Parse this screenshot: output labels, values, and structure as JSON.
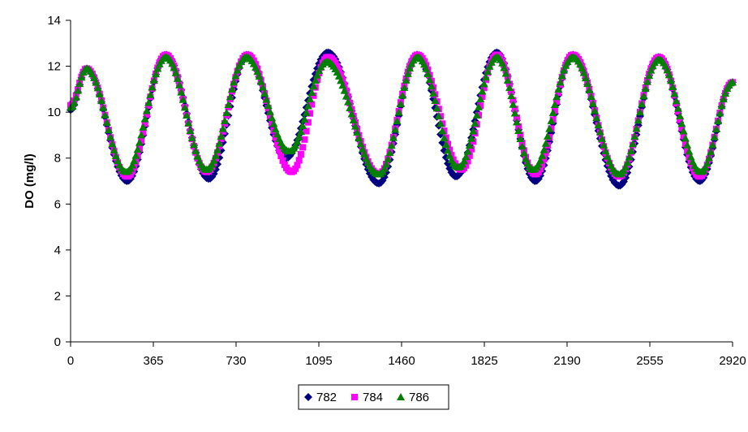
{
  "chart_data": {
    "type": "scatter",
    "title": "",
    "xlabel": "",
    "ylabel": "DO (mg/l)",
    "xlim": [
      0,
      2920
    ],
    "ylim": [
      0,
      14
    ],
    "x_ticks": [
      0,
      365,
      730,
      1095,
      1460,
      1825,
      2190,
      2555,
      2920
    ],
    "y_ticks": [
      0,
      2,
      4,
      6,
      8,
      10,
      12,
      14
    ],
    "grid": false,
    "legend_position": "bottom",
    "x_step": 8,
    "series": [
      {
        "name": "782",
        "color": "#000080",
        "marker": "diamond",
        "x": [
          0,
          70,
          250,
          420,
          610,
          780,
          950,
          1135,
          1360,
          1530,
          1700,
          1880,
          2050,
          2215,
          2420,
          2595,
          2775,
          2920
        ],
        "y": [
          10.1,
          11.9,
          7.0,
          12.5,
          7.1,
          12.5,
          8.0,
          12.6,
          6.9,
          12.5,
          7.2,
          12.6,
          7.0,
          12.5,
          6.8,
          12.4,
          7.0,
          11.3
        ]
      },
      {
        "name": "784",
        "color": "#FF00FF",
        "marker": "square",
        "x": [
          0,
          70,
          250,
          420,
          600,
          780,
          975,
          1135,
          1360,
          1530,
          1725,
          1880,
          2050,
          2215,
          2420,
          2595,
          2775,
          2920
        ],
        "y": [
          10.3,
          11.9,
          7.2,
          12.5,
          7.4,
          12.5,
          7.4,
          12.4,
          7.3,
          12.5,
          7.5,
          12.5,
          7.3,
          12.5,
          7.2,
          12.4,
          7.2,
          11.3
        ]
      },
      {
        "name": "786",
        "color": "#008000",
        "marker": "triangle",
        "x": [
          0,
          70,
          245,
          420,
          600,
          775,
          965,
          1130,
          1360,
          1530,
          1710,
          1880,
          2040,
          2215,
          2420,
          2595,
          2780,
          2920
        ],
        "y": [
          10.2,
          11.9,
          7.4,
          12.4,
          7.5,
          12.4,
          8.3,
          12.2,
          7.3,
          12.4,
          7.6,
          12.4,
          7.5,
          12.4,
          7.3,
          12.3,
          7.4,
          11.3
        ]
      }
    ]
  }
}
